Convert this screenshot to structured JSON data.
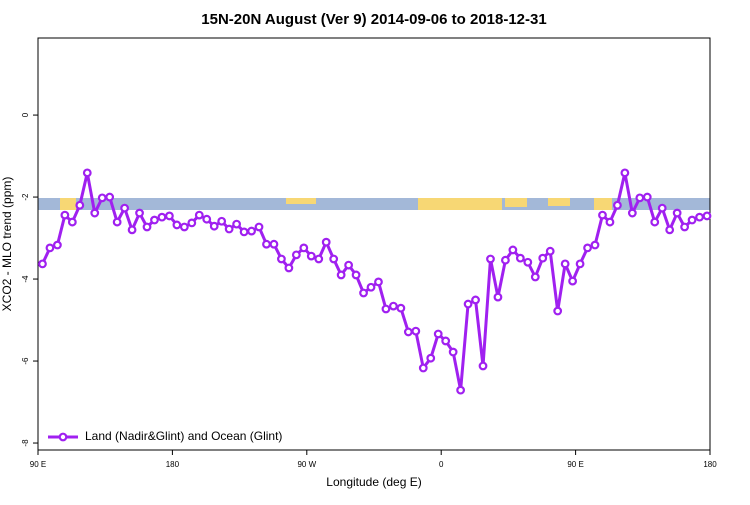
{
  "chart_data": {
    "type": "line",
    "title": "15N-20N August (Ver 9)   2014-09-06 to 2018-12-31",
    "x_label": "Longitude (deg E)",
    "y_label": "XCO2 - MLO trend (ppm)",
    "xlim": [
      90,
      540
    ],
    "ylim": [
      -8.17,
      1.88
    ],
    "xticks": [
      {
        "value": 90,
        "label": "90 E"
      },
      {
        "value": 180,
        "label": "180"
      },
      {
        "value": 270,
        "label": "90 W"
      },
      {
        "value": 360,
        "label": "0"
      },
      {
        "value": 450,
        "label": "90 E"
      },
      {
        "value": 540,
        "label": "180"
      }
    ],
    "yticks": [
      -8,
      -6,
      -4,
      -2,
      0
    ],
    "legend_position": "bottom-left",
    "x": [
      93,
      98,
      103,
      108,
      113,
      118,
      123,
      128,
      133,
      138,
      143,
      148,
      153,
      158,
      163,
      168,
      173,
      178,
      183,
      188,
      193,
      198,
      203,
      208,
      213,
      218,
      223,
      228,
      233,
      238,
      243,
      248,
      253,
      258,
      263,
      268,
      273,
      278,
      283,
      288,
      293,
      298,
      303,
      308,
      313,
      318,
      323,
      328,
      333,
      338,
      343,
      348,
      353,
      358,
      363,
      368,
      373,
      378,
      383,
      388,
      393,
      398,
      403,
      408,
      413,
      418,
      423,
      428,
      433,
      438,
      443,
      448,
      453,
      458,
      463,
      468,
      473,
      478,
      483,
      488,
      493,
      498,
      503,
      508,
      513,
      518,
      523,
      528,
      533,
      538
    ],
    "series": [
      {
        "name": "Land (Nadir&Glint) and Ocean (Glint)",
        "color": "#a020f0",
        "values": [
          -3.63,
          -3.24,
          -3.17,
          -2.44,
          -2.61,
          -2.2,
          -1.41,
          -2.39,
          -2.02,
          -2.0,
          -2.61,
          -2.27,
          -2.8,
          -2.39,
          -2.73,
          -2.56,
          -2.49,
          -2.46,
          -2.68,
          -2.73,
          -2.63,
          -2.44,
          -2.54,
          -2.71,
          -2.59,
          -2.78,
          -2.66,
          -2.85,
          -2.83,
          -2.73,
          -3.15,
          -3.15,
          -3.51,
          -3.73,
          -3.41,
          -3.24,
          -3.44,
          -3.51,
          -3.1,
          -3.51,
          -3.9,
          -3.66,
          -3.9,
          -4.34,
          -4.2,
          -4.07,
          -4.73,
          -4.66,
          -4.71,
          -5.29,
          -5.27,
          -6.17,
          -5.93,
          -5.34,
          -5.51,
          -5.78,
          -6.71,
          -4.61,
          -4.51,
          -6.12,
          -3.51,
          -4.44,
          -3.54,
          -3.29,
          -3.49,
          -3.59,
          -3.95,
          -3.49,
          -3.32,
          -4.78,
          -3.63,
          -4.05,
          -3.63,
          -3.24,
          -3.17,
          -2.44,
          -2.61,
          -2.2,
          -1.41,
          -2.39,
          -2.02,
          -2.0,
          -2.61,
          -2.27,
          -2.8,
          -2.39,
          -2.73,
          -2.56,
          -2.49,
          -2.46
        ]
      }
    ]
  }
}
